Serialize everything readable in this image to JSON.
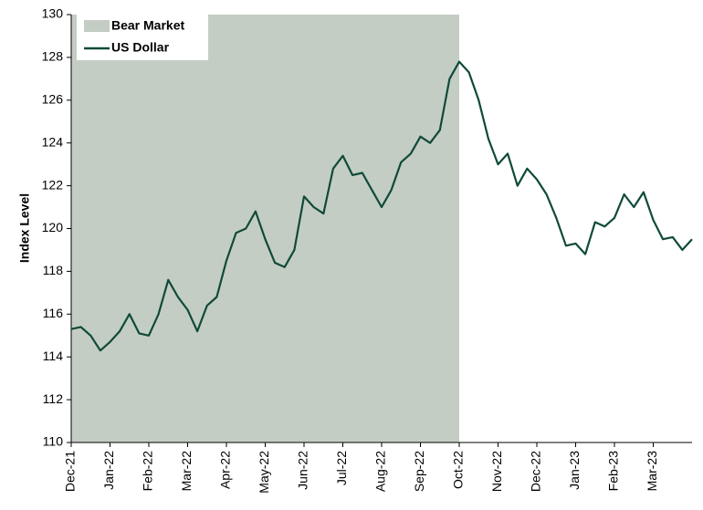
{
  "chart_data": {
    "type": "line",
    "y_label": "Index Level",
    "categories": [
      "Dec-21",
      null,
      null,
      null,
      "Jan-22",
      null,
      null,
      null,
      "Feb-22",
      null,
      null,
      null,
      "Mar-22",
      null,
      null,
      null,
      "Apr-22",
      null,
      null,
      null,
      "May-22",
      null,
      null,
      null,
      "Jun-22",
      null,
      null,
      null,
      "Jul-22",
      null,
      null,
      null,
      "Aug-22",
      null,
      null,
      null,
      "Sep-22",
      null,
      null,
      null,
      "Oct-22",
      null,
      null,
      null,
      "Nov-22",
      null,
      null,
      null,
      "Dec-22",
      null,
      null,
      null,
      "Jan-23",
      null,
      null,
      null,
      "Feb-23",
      null,
      null,
      null,
      "Mar-23",
      null,
      null,
      null,
      null
    ],
    "series": [
      {
        "name": "US Dollar",
        "color": "#0f4a3a",
        "values": [
          115.3,
          115.4,
          115.0,
          114.3,
          114.7,
          115.2,
          116.0,
          115.1,
          115.0,
          116.0,
          117.6,
          116.8,
          116.2,
          115.2,
          116.4,
          116.8,
          118.5,
          119.8,
          120.0,
          120.8,
          119.5,
          118.4,
          118.2,
          119.0,
          121.5,
          121.0,
          120.7,
          122.8,
          123.4,
          122.5,
          122.6,
          121.8,
          121.0,
          121.8,
          123.1,
          123.5,
          124.3,
          124.0,
          124.6,
          127.0,
          127.8,
          127.3,
          126.0,
          124.2,
          123.0,
          123.5,
          122.0,
          122.8,
          122.3,
          121.6,
          120.5,
          119.2,
          119.3,
          118.8,
          120.3,
          120.1,
          120.5,
          121.6,
          121.0,
          121.7,
          120.4,
          119.5,
          119.6,
          119.0,
          119.5
        ]
      }
    ],
    "shaded": {
      "name": "Bear Market",
      "color": "#c4cdc3",
      "span": [
        "Dec-21",
        "Oct-22"
      ]
    },
    "ylim": [
      110,
      130
    ],
    "yticks": [
      110,
      112,
      114,
      116,
      118,
      120,
      122,
      124,
      126,
      128,
      130
    ],
    "grid": false,
    "legend": "top-left"
  }
}
